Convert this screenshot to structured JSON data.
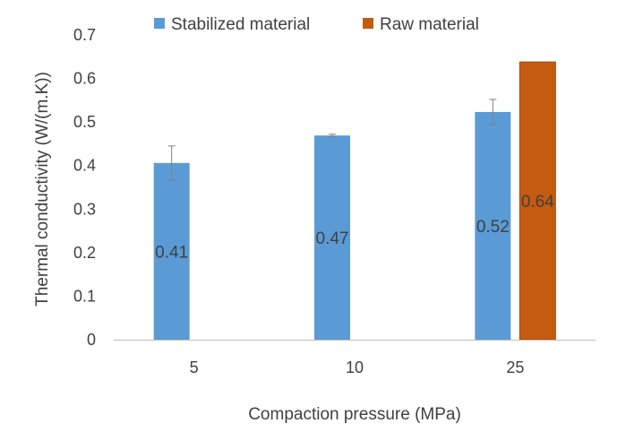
{
  "chart_data": {
    "type": "bar",
    "title": "",
    "xlabel": "Compaction pressure (MPa)",
    "ylabel": "Thermal conductivity (W/(m.K))",
    "categories": [
      "5",
      "10",
      "25"
    ],
    "ylim": [
      0,
      0.7
    ],
    "yticks": [
      0,
      0.1,
      0.2,
      0.3,
      0.4,
      0.5,
      0.6,
      0.7
    ],
    "ytick_labels": [
      "0",
      "0.1",
      "0.2",
      "0.3",
      "0.4",
      "0.5",
      "0.6",
      "0.7"
    ],
    "grid": false,
    "legend_position": "top",
    "series": [
      {
        "name": "Stabilized material",
        "color": "#5B9BD5",
        "values": [
          0.406,
          0.469,
          0.523
        ],
        "error": [
          0.039,
          0.003,
          0.029
        ],
        "data_labels": [
          "0.41",
          "0.47",
          "0.52"
        ]
      },
      {
        "name": "Raw material",
        "color": "#C55A11",
        "values": [
          null,
          null,
          0.638
        ],
        "error": [
          null,
          null,
          null
        ],
        "data_labels": [
          "",
          "",
          "0.64"
        ]
      }
    ]
  }
}
